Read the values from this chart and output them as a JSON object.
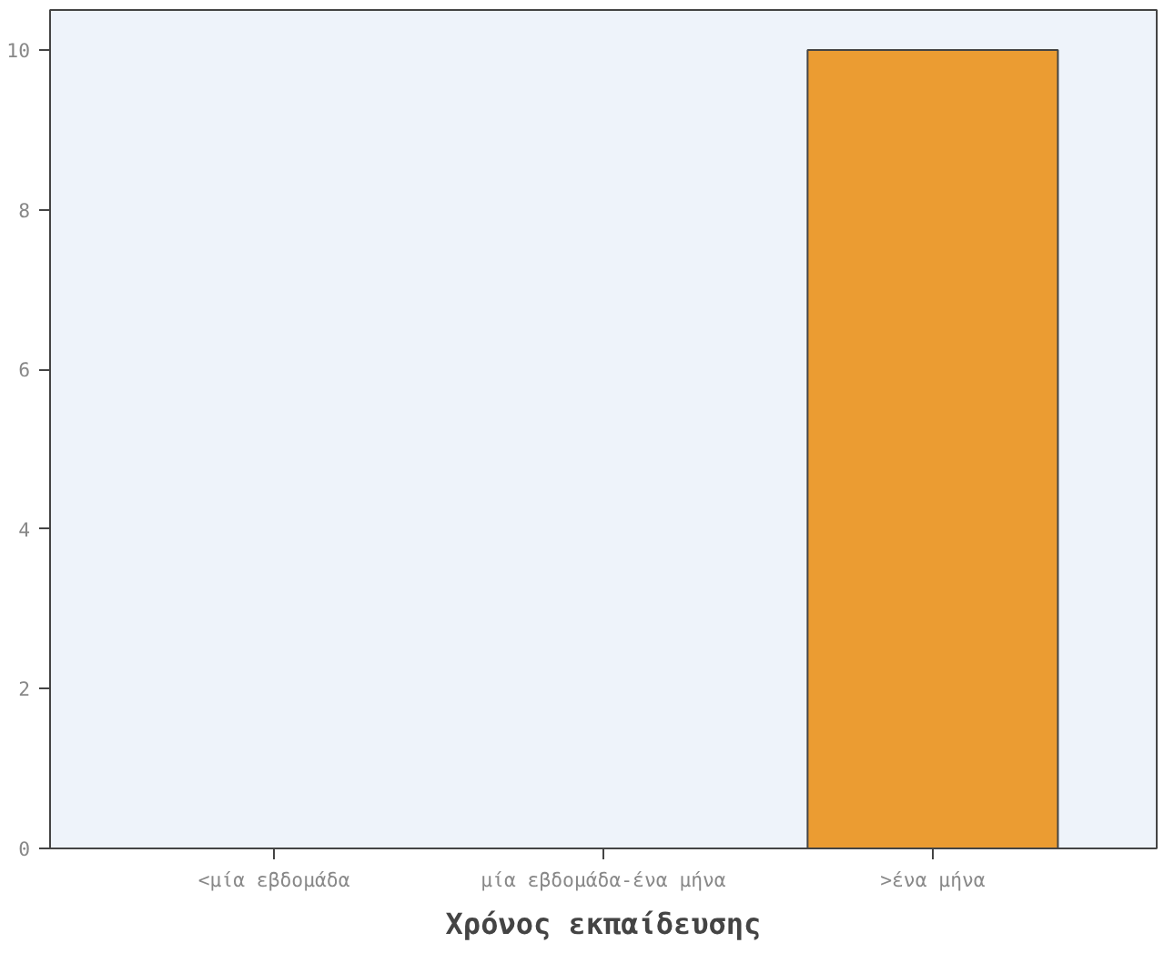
{
  "chart_data": {
    "type": "bar",
    "xlabel": "Χρόνος εκπαίδευσης",
    "categories": [
      "<μία εβδομάδα",
      "μία εβδομάδα-ένα μήνα",
      ">ένα μήνα"
    ],
    "values": [
      0,
      0,
      10
    ],
    "color": "#eb9c32",
    "ylim": [
      0,
      10.5
    ],
    "yticks": [
      0,
      2,
      4,
      6,
      8,
      10
    ],
    "grid": false
  }
}
